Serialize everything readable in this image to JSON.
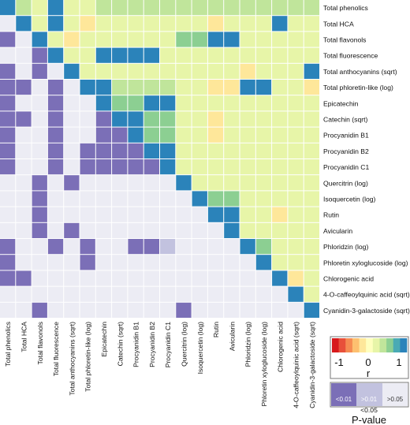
{
  "chart_data": {
    "type": "heatmap",
    "variables": [
      "Total phenolics",
      "Total HCA",
      "Total flavonols",
      "Total fluorescence",
      "Total anthocyanins (sqrt)",
      "Total phloretin-like (log)",
      "Epicatechin",
      "Catechin (sqrt)",
      "Procyanidin B1",
      "Procyanidin B2",
      "Procyanidin C1",
      "Quercitrin (log)",
      "Isoquercetin (log)",
      "Rutin",
      "Avicularin",
      "Phloridzin (log)",
      "Phloretin xyloglucoside (log)",
      "Chlorogenic acid",
      "4-O-caffeoylquinic acid (sqrt)",
      "Cyanidin-3-galactoside (sqrt)"
    ],
    "upper_triangle": "correlation r",
    "lower_triangle": "P-value",
    "r_values": [
      [
        1,
        0.45,
        0.2,
        0.9,
        0.25,
        0.25,
        0.45,
        0.45,
        0.45,
        0.45,
        0.45,
        0.35,
        0.35,
        0.35,
        0.35,
        0.45,
        0.45,
        0.45,
        0.3,
        0.3
      ],
      [
        0.45,
        1,
        0.1,
        0.9,
        0.1,
        -0.2,
        0.1,
        0.1,
        0.1,
        0.1,
        0.1,
        0.1,
        0.1,
        -0.2,
        0.1,
        0.1,
        0.1,
        0.9,
        0.1,
        0.1
      ],
      [
        0.2,
        0.1,
        1,
        0.1,
        -0.25,
        0.1,
        0.1,
        0.1,
        0.1,
        0.1,
        0.1,
        0.5,
        0.5,
        0.9,
        0.9,
        0.1,
        0.1,
        0.1,
        0.1,
        0.1
      ],
      [
        0.9,
        0.9,
        0.1,
        1,
        0.2,
        0.2,
        0.9,
        0.9,
        0.9,
        0.9,
        0.2,
        0.2,
        0.2,
        0.2,
        0.2,
        0.2,
        0.2,
        0.2,
        0.2,
        0.2
      ],
      [
        0.25,
        0.1,
        -0.25,
        0.2,
        1,
        0.1,
        0.1,
        0.1,
        0.1,
        0.1,
        0.1,
        0.1,
        0.1,
        0.1,
        0.1,
        -0.3,
        0.1,
        0.1,
        0.1,
        0.9
      ],
      [
        0.25,
        -0.2,
        0.1,
        0.2,
        0.1,
        1,
        0.9,
        0.4,
        0.4,
        0.4,
        0.4,
        0.1,
        0.1,
        -0.2,
        -0.2,
        0.9,
        0.9,
        0.1,
        0.1,
        -0.2
      ],
      [
        0.45,
        0.1,
        0.1,
        0.9,
        0.1,
        0.9,
        1,
        0.5,
        0.5,
        0.9,
        0.9,
        0.1,
        0.1,
        0.1,
        0.1,
        0.1,
        0.1,
        0.1,
        0.1,
        0.1
      ],
      [
        0.45,
        0.1,
        0.1,
        0.9,
        0.1,
        0.4,
        0.5,
        1,
        0.9,
        0.5,
        0.5,
        0.1,
        0.1,
        -0.2,
        0.1,
        0.1,
        0.1,
        0.1,
        0.1,
        0.1
      ],
      [
        0.45,
        0.1,
        0.1,
        0.9,
        0.1,
        0.4,
        0.5,
        0.9,
        1,
        0.5,
        0.5,
        0.1,
        0.1,
        -0.2,
        0.1,
        0.1,
        0.1,
        0.1,
        0.1,
        0.1
      ],
      [
        0.45,
        0.1,
        0.1,
        0.9,
        0.1,
        0.4,
        0.9,
        0.5,
        0.5,
        1,
        0.9,
        0.1,
        0.1,
        0.1,
        0.1,
        0.1,
        0.1,
        0.1,
        0.1,
        0.1
      ],
      [
        0.45,
        0.1,
        0.1,
        0.2,
        0.1,
        0.4,
        0.9,
        0.5,
        0.5,
        0.9,
        1,
        0.1,
        0.1,
        0.1,
        0.1,
        0.1,
        0.1,
        0.1,
        0.1,
        0.1
      ],
      [
        0.35,
        0.1,
        0.5,
        0.2,
        0.1,
        0.1,
        0.1,
        0.1,
        0.1,
        0.1,
        0.1,
        1,
        0.1,
        0.1,
        0.1,
        0.1,
        0.1,
        0.1,
        0.1,
        0.1
      ],
      [
        0.35,
        0.1,
        0.5,
        0.2,
        0.1,
        0.1,
        0.1,
        0.1,
        0.1,
        0.1,
        0.1,
        0.1,
        1,
        0.5,
        0.5,
        0.1,
        0.1,
        0.1,
        0.1,
        0.1
      ],
      [
        0.35,
        -0.2,
        0.9,
        0.2,
        0.1,
        -0.2,
        0.1,
        -0.2,
        -0.2,
        0.1,
        0.1,
        0.1,
        0.5,
        1,
        0.9,
        0.1,
        0.1,
        -0.2,
        0.1,
        0.1
      ],
      [
        0.35,
        0.1,
        0.9,
        0.2,
        0.1,
        -0.2,
        0.1,
        0.1,
        0.1,
        0.1,
        0.1,
        0.1,
        0.5,
        0.9,
        1,
        0.1,
        0.1,
        0.1,
        0.1,
        0.1
      ],
      [
        0.45,
        0.1,
        0.1,
        0.2,
        -0.3,
        0.9,
        0.1,
        0.1,
        0.1,
        0.1,
        0.1,
        0.1,
        0.1,
        0.1,
        0.1,
        1,
        0.5,
        0.1,
        0.1,
        0.1
      ],
      [
        0.45,
        0.1,
        0.1,
        0.2,
        0.1,
        0.9,
        0.1,
        0.1,
        0.1,
        0.1,
        0.1,
        0.1,
        0.1,
        0.1,
        0.1,
        0.5,
        1,
        0.1,
        0.1,
        0.1
      ],
      [
        0.45,
        0.9,
        0.1,
        0.2,
        0.1,
        0.1,
        0.1,
        0.1,
        0.1,
        0.1,
        0.1,
        0.1,
        0.1,
        -0.2,
        0.1,
        0.1,
        0.1,
        1,
        -0.2,
        0.1
      ],
      [
        0.3,
        0.1,
        0.1,
        0.2,
        0.1,
        0.1,
        0.1,
        0.1,
        0.1,
        0.1,
        0.1,
        0.1,
        0.1,
        0.1,
        0.1,
        0.1,
        0.1,
        -0.2,
        1,
        0.1
      ],
      [
        0.3,
        0.1,
        0.1,
        0.2,
        0.9,
        -0.2,
        0.1,
        0.1,
        0.1,
        0.1,
        0.1,
        0.1,
        0.1,
        0.1,
        0.1,
        0.1,
        0.1,
        0.1,
        0.1,
        1
      ]
    ],
    "p_lower": {
      "1": [
        2
      ],
      "2": [
        0,
        3
      ],
      "3": [
        2
      ],
      "4": [
        0,
        2
      ],
      "5": [
        0,
        1,
        3
      ],
      "6": [
        0,
        3
      ],
      "7": [
        0,
        1,
        3,
        6
      ],
      "8": [
        0,
        3,
        6,
        7
      ],
      "9": [
        0,
        3,
        5,
        6,
        7,
        8
      ],
      "10": [
        0,
        3,
        5,
        6,
        7,
        8,
        9
      ],
      "11": [
        2,
        4
      ],
      "12": [
        2
      ],
      "13": [
        2
      ],
      "14": [
        2,
        4
      ],
      "15": [
        0,
        3,
        5,
        8,
        9
      ],
      "16": [
        0,
        5
      ],
      "17": [
        0,
        1
      ],
      "19": [
        2,
        11
      ]
    },
    "p_category_codes": {
      "<0.01": 2,
      ">0.01 <0.05": 1,
      ">0.05": 0
    },
    "p_mid": {
      "1": [],
      "7": [
        1
      ],
      "14": [
        4
      ],
      "15": [
        9,
        10
      ]
    },
    "r_scale": {
      "min": -1,
      "max": 1,
      "ticks": [
        "-1",
        "0",
        "1"
      ],
      "label": "r"
    },
    "r_colors": [
      "#d7191c",
      "#e8503a",
      "#f58b52",
      "#fdc070",
      "#fee79a",
      "#ffffbf",
      "#e7f5a8",
      "#c0e59b",
      "#8ccf92",
      "#4aaab4",
      "#2b83ba"
    ],
    "p_legend": {
      "title": "P-value",
      "labels": [
        "<0.01",
        ">0.01",
        ">0.05"
      ],
      "sublabel": "<0.05",
      "colors": [
        "#7b6fb7",
        "#c2c2df",
        "#ececf4"
      ]
    }
  }
}
